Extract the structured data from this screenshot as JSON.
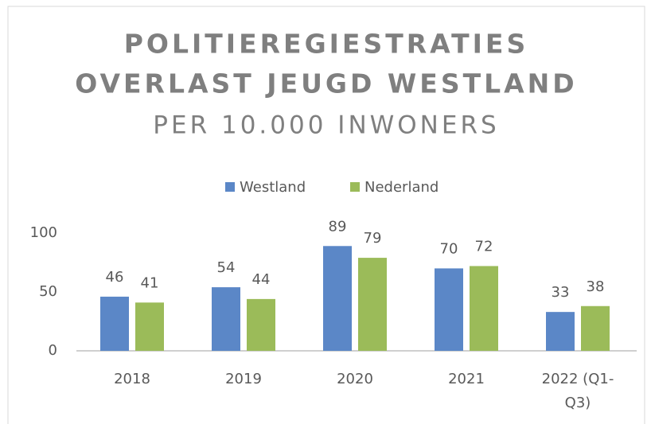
{
  "chart_data": {
    "type": "bar",
    "title": [
      "POLITIEREGIESTRATIES",
      "OVERLAST JEUGD WESTLAND"
    ],
    "subtitle": "PER 10.000 INWONERS",
    "categories": [
      "2018",
      "2019",
      "2020",
      "2021",
      "2022 (Q1-Q3)"
    ],
    "series": [
      {
        "name": "Westland",
        "color": "#5b87c7",
        "values": [
          46,
          54,
          89,
          70,
          33
        ]
      },
      {
        "name": "Nederland",
        "color": "#9bbb59",
        "values": [
          41,
          44,
          79,
          72,
          38
        ]
      }
    ],
    "ylim": [
      0,
      100
    ],
    "yticks": [
      0,
      50,
      100
    ],
    "grid": false,
    "legend": "top"
  }
}
